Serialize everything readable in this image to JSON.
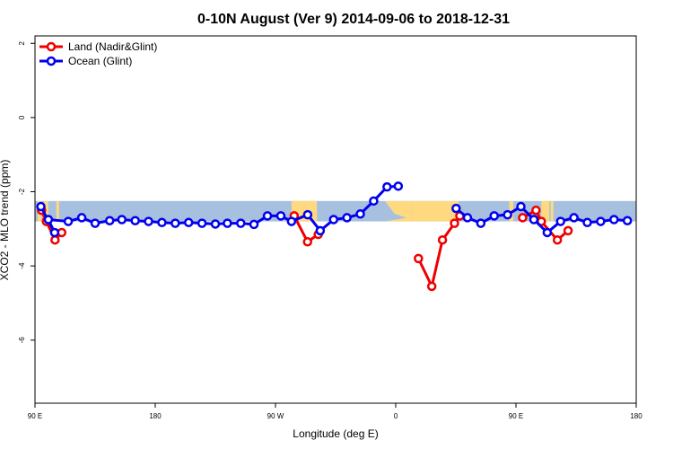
{
  "chart_data": {
    "type": "line",
    "title": "0-10N August (Ver 9)   2014-09-06 to 2018-12-31",
    "xlabel": "Longitude (deg E)",
    "ylabel": "XCO2 - MLO trend (ppm)",
    "xlim": [
      90,
      540
    ],
    "ylim": [
      -7.7,
      2.2
    ],
    "x_ticks": [
      {
        "value": 90,
        "label": "90 E"
      },
      {
        "value": 180,
        "label": "180"
      },
      {
        "value": 270,
        "label": "90 W"
      },
      {
        "value": 360,
        "label": "0"
      },
      {
        "value": 450,
        "label": "90 E"
      },
      {
        "value": 540,
        "label": "180"
      }
    ],
    "y_ticks": [
      {
        "value": 2,
        "label": "2"
      },
      {
        "value": 0,
        "label": "0"
      },
      {
        "value": -2,
        "label": "-2"
      },
      {
        "value": -4,
        "label": "-4"
      },
      {
        "value": -6,
        "label": "-6"
      }
    ],
    "legend": {
      "position": "top-left"
    },
    "series": [
      {
        "name": "Land (Nadir&Glint)",
        "color": "#ee0000",
        "segments": [
          [
            [
              94.9,
              -2.5
            ],
            [
              98.5,
              -2.8
            ],
            [
              105,
              -3.3
            ],
            [
              110,
              -3.1
            ]
          ],
          [
            [
              284,
              -2.65
            ],
            [
              294,
              -3.35
            ],
            [
              302,
              -3.15
            ]
          ],
          [
            [
              377,
              -3.8
            ],
            [
              387,
              -4.55
            ],
            [
              395,
              -3.3
            ],
            [
              404,
              -2.85
            ],
            [
              408,
              -2.65
            ]
          ],
          [
            [
              455,
              -2.7
            ],
            [
              465,
              -2.5
            ],
            [
              469,
              -2.8
            ],
            [
              481,
              -3.3
            ],
            [
              489,
              -3.05
            ]
          ]
        ]
      },
      {
        "name": "Ocean (Glint)",
        "color": "#0000ee",
        "segments": [
          [
            [
              94.4,
              -2.4
            ],
            [
              104.7,
              -3.1
            ],
            [
              100,
              -2.75
            ],
            [
              114.9,
              -2.8
            ],
            [
              125,
              -2.7
            ],
            [
              135,
              -2.85
            ],
            [
              145.9,
              -2.78
            ],
            [
              155,
              -2.75
            ],
            [
              165,
              -2.78
            ],
            [
              175,
              -2.8
            ],
            [
              185,
              -2.83
            ],
            [
              195,
              -2.85
            ],
            [
              205,
              -2.83
            ],
            [
              215,
              -2.85
            ],
            [
              225,
              -2.87
            ],
            [
              234,
              -2.85
            ],
            [
              244,
              -2.85
            ],
            [
              253.9,
              -2.88
            ],
            [
              264,
              -2.65
            ],
            [
              274,
              -2.65
            ],
            [
              282,
              -2.8
            ],
            [
              294.1,
              -2.62
            ],
            [
              303.5,
              -3.05
            ],
            [
              313.5,
              -2.75
            ],
            [
              323.5,
              -2.7
            ],
            [
              333.5,
              -2.6
            ],
            [
              343.5,
              -2.25
            ],
            [
              353.5,
              -1.87
            ],
            [
              361.9,
              -1.85
            ]
          ]
        ]
      },
      {
        "name": "Ocean (Glint) east",
        "color": "#0000ee",
        "legend": false,
        "segments": [
          [
            [
              405.2,
              -2.45
            ],
            [
              413.7,
              -2.7
            ],
            [
              423.7,
              -2.85
            ],
            [
              433.7,
              -2.65
            ],
            [
              443.7,
              -2.62
            ],
            [
              453.7,
              -2.4
            ],
            [
              463.4,
              -2.75
            ],
            [
              473.4,
              -3.1
            ],
            [
              483.4,
              -2.8
            ],
            [
              493.4,
              -2.7
            ],
            [
              503.4,
              -2.83
            ],
            [
              513.4,
              -2.8
            ],
            [
              523.4,
              -2.75
            ],
            [
              533.4,
              -2.78
            ]
          ]
        ]
      }
    ],
    "map_band": {
      "ylim": [
        -2.8,
        -2.25
      ],
      "ocean_color": "#a8c0e0",
      "land_color": "#ffd980"
    }
  }
}
